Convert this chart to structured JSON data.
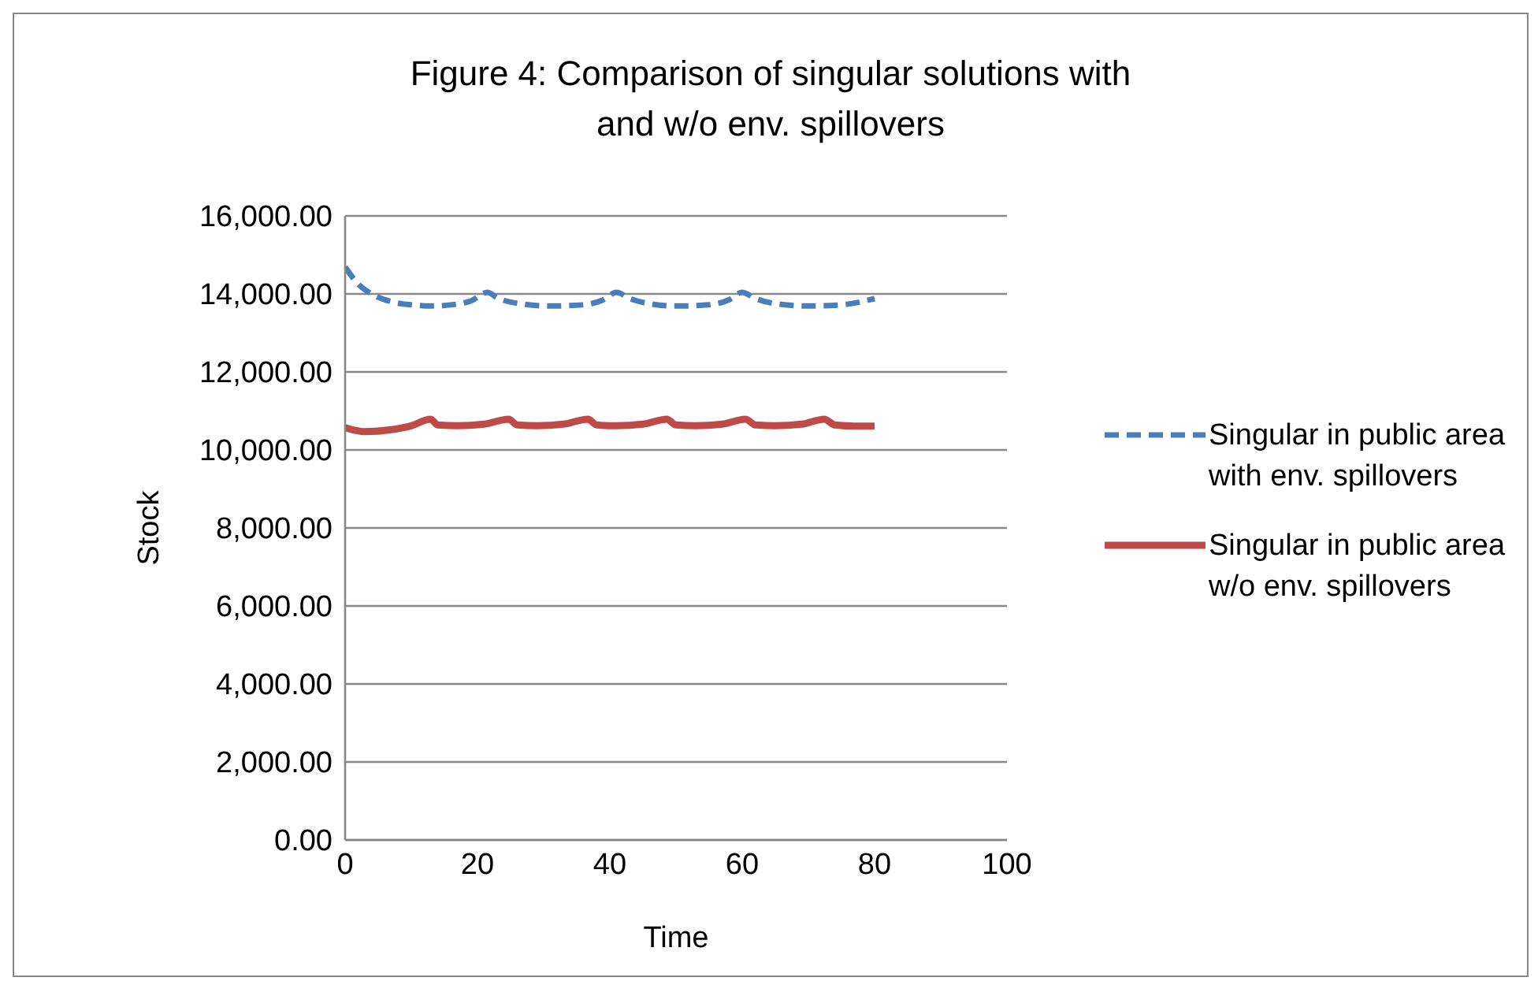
{
  "chart_data": {
    "type": "line",
    "title": "Figure 4: Comparison of singular solutions with and w/o env. spillovers",
    "xlabel": "Time",
    "ylabel": "Stock",
    "xlim": [
      0,
      100
    ],
    "xticks": [
      0,
      20,
      40,
      60,
      80,
      100
    ],
    "ylim": [
      0,
      16000
    ],
    "yticks": [
      {
        "value": 0,
        "label": "0.00"
      },
      {
        "value": 2000,
        "label": "2,000.00"
      },
      {
        "value": 4000,
        "label": "4,000.00"
      },
      {
        "value": 6000,
        "label": "6,000.00"
      },
      {
        "value": 8000,
        "label": "8,000.00"
      },
      {
        "value": 10000,
        "label": "10,000.00"
      },
      {
        "value": 12000,
        "label": "12,000.00"
      },
      {
        "value": 14000,
        "label": "14,000.00"
      },
      {
        "value": 16000,
        "label": "16,000.00"
      }
    ],
    "grid": "y",
    "legend": "right",
    "marker": "none",
    "series": [
      {
        "name": "Singular in public area with env. spillovers",
        "color": "#4a7ebb",
        "line_style": "dashed",
        "x": [
          0,
          2,
          4,
          7,
          10,
          13,
          16,
          19,
          21.5,
          23,
          26,
          31,
          36,
          39,
          41,
          43,
          46,
          50,
          55,
          58,
          60,
          62,
          65,
          70,
          75,
          80
        ],
        "values": [
          14690,
          14250,
          14000,
          13800,
          13720,
          13690,
          13720,
          13820,
          14040,
          13900,
          13760,
          13690,
          13720,
          13850,
          14040,
          13880,
          13750,
          13690,
          13720,
          13850,
          14040,
          13880,
          13750,
          13690,
          13720,
          13880
        ]
      },
      {
        "name": "Singular in public area w/o env. spillovers",
        "color": "#be4b48",
        "line_style": "solid",
        "x": [
          0,
          3,
          7,
          10,
          12.9,
          14,
          17,
          21,
          24.7,
          26,
          29,
          33,
          36.7,
          38,
          41,
          45,
          48.6,
          50,
          53,
          57,
          60.5,
          62,
          65,
          69,
          72.4,
          74,
          77,
          80
        ],
        "values": [
          10570,
          10470,
          10520,
          10620,
          10790,
          10640,
          10620,
          10660,
          10790,
          10640,
          10620,
          10660,
          10790,
          10640,
          10620,
          10660,
          10790,
          10640,
          10620,
          10660,
          10790,
          10640,
          10620,
          10660,
          10790,
          10640,
          10610,
          10610
        ]
      }
    ]
  }
}
